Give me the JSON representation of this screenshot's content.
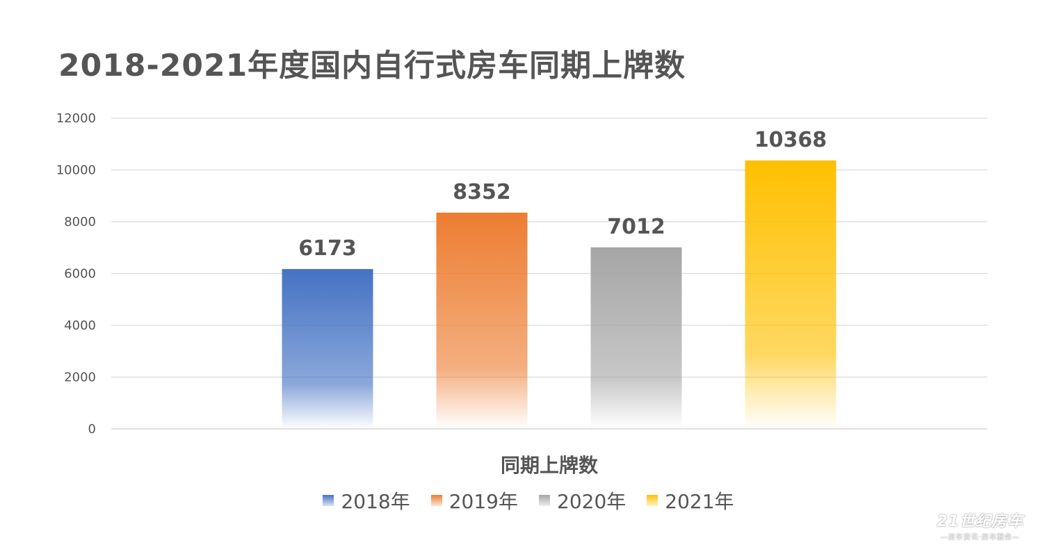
{
  "title": "2018-2021年度国内自行式房车同期上牌数",
  "chart_data": {
    "type": "bar",
    "title": "2018-2021年度国内自行式房车同期上牌数",
    "xlabel": "同期上牌数",
    "ylabel": "",
    "ylim": [
      0,
      12000
    ],
    "yticks": [
      0,
      2000,
      4000,
      6000,
      8000,
      10000,
      12000
    ],
    "grid": true,
    "legend_position": "bottom",
    "categories": [
      "同期上牌数"
    ],
    "series": [
      {
        "name": "2018年",
        "values": [
          6173
        ],
        "color": "#4472C4"
      },
      {
        "name": "2019年",
        "values": [
          8352
        ],
        "color": "#ED7D31"
      },
      {
        "name": "2020年",
        "values": [
          7012
        ],
        "color": "#A5A5A5"
      },
      {
        "name": "2021年",
        "values": [
          10368
        ],
        "color": "#FFC000"
      }
    ]
  },
  "watermark": {
    "main": "21世纪房车",
    "sub": "—房车资讯·房车服务—"
  }
}
